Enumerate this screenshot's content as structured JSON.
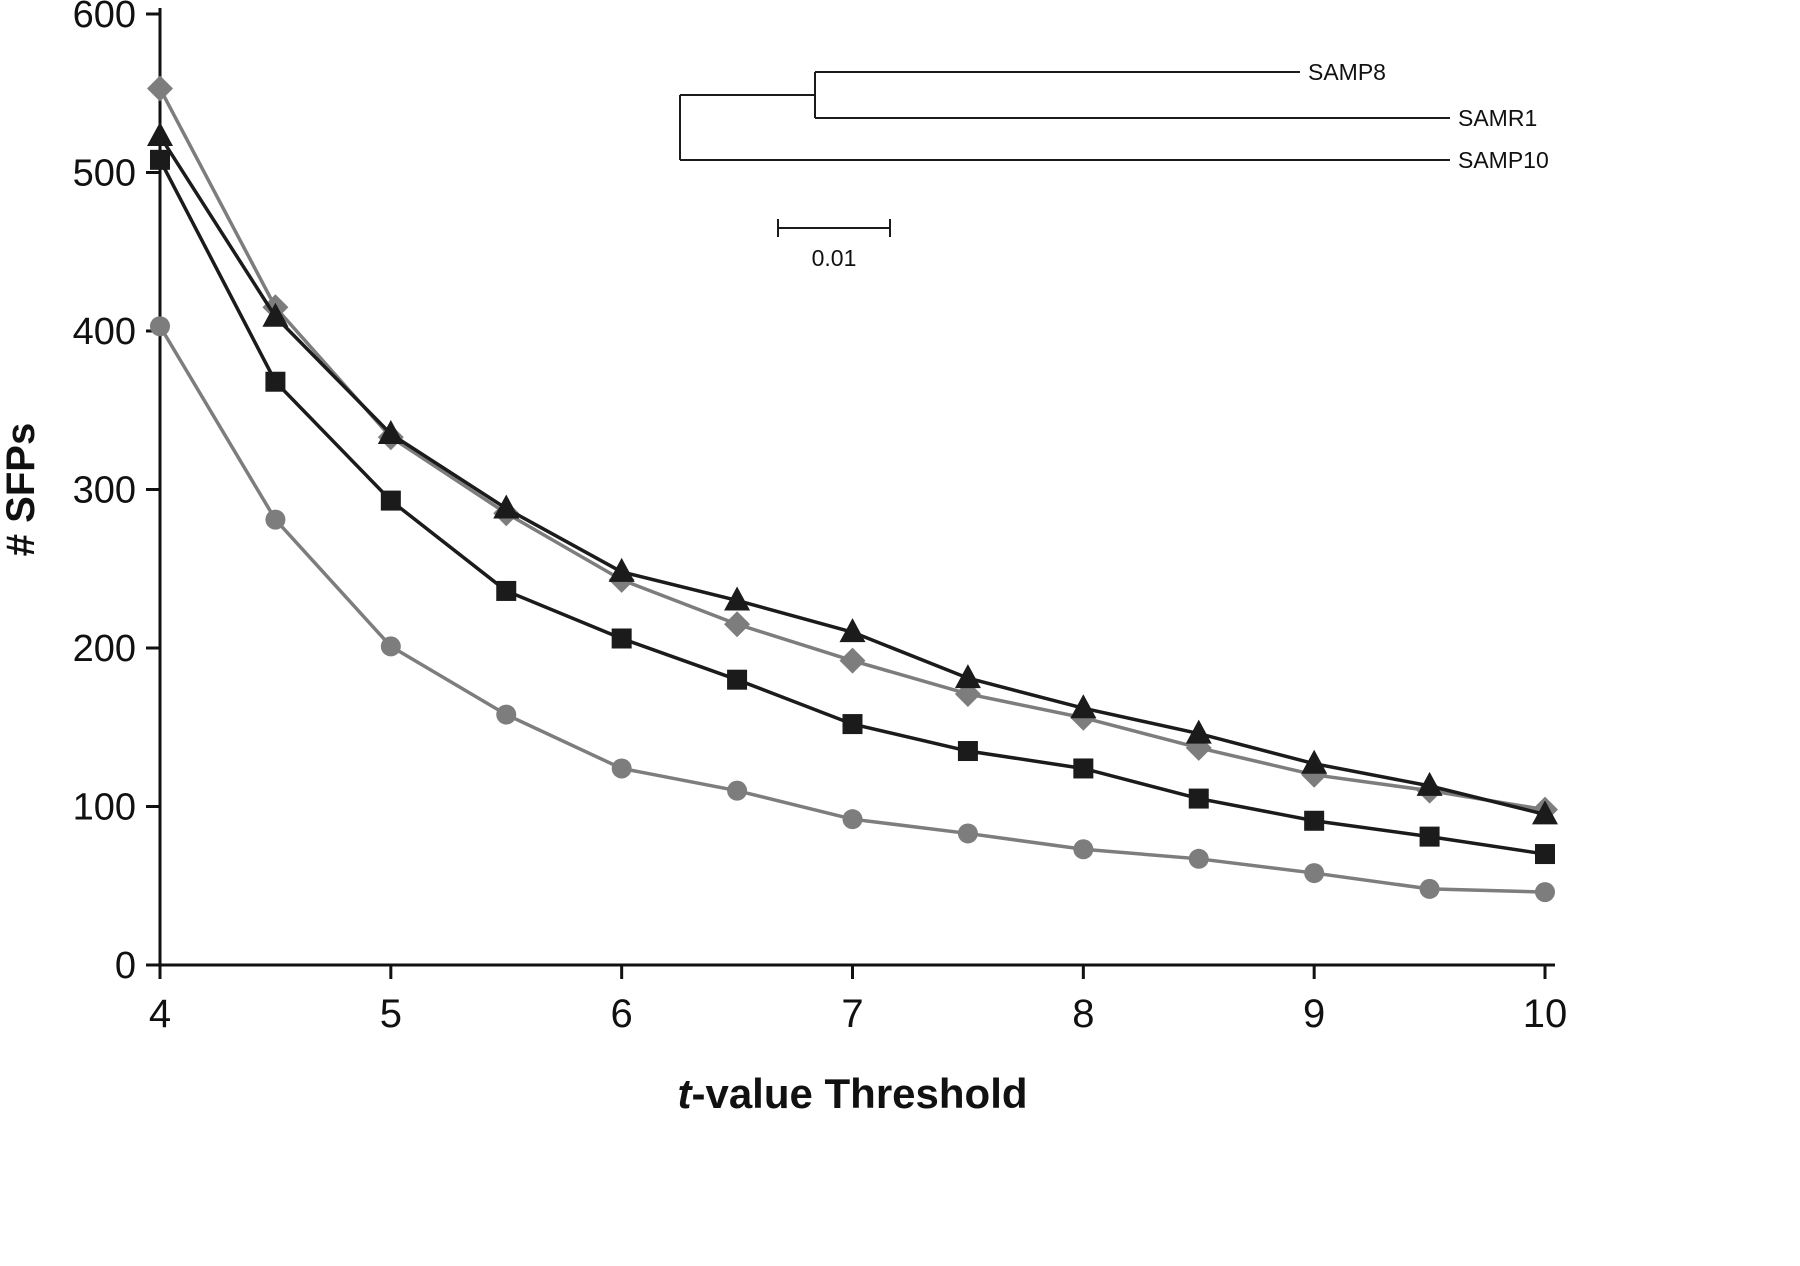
{
  "chart_data": {
    "type": "line",
    "title": "",
    "xlabel_italic": "t",
    "xlabel_rest": "-value Threshold",
    "ylabel": "# SFPs",
    "x": [
      4,
      4.5,
      5,
      5.5,
      6,
      6.5,
      7,
      7.5,
      8,
      8.5,
      9,
      9.5,
      10
    ],
    "xlim": [
      4,
      10
    ],
    "ylim": [
      0,
      600
    ],
    "x_ticks": [
      4,
      5,
      6,
      7,
      8,
      9,
      10
    ],
    "y_ticks": [
      0,
      100,
      200,
      300,
      400,
      500,
      600
    ],
    "grid": false,
    "legend": "none",
    "colors": {
      "gray": "#7d7d7d",
      "black": "#1b1b1b"
    },
    "series": [
      {
        "name": "gray-diamond",
        "marker": "diamond",
        "color": "#7d7d7d",
        "values": [
          553,
          415,
          333,
          285,
          243,
          215,
          192,
          171,
          156,
          137,
          120,
          110,
          98
        ]
      },
      {
        "name": "black-triangle",
        "marker": "triangle",
        "color": "#1b1b1b",
        "values": [
          523,
          409,
          335,
          288,
          248,
          230,
          210,
          181,
          162,
          146,
          127,
          113,
          95
        ]
      },
      {
        "name": "black-square",
        "marker": "square",
        "color": "#1b1b1b",
        "values": [
          508,
          368,
          293,
          236,
          206,
          180,
          152,
          135,
          124,
          105,
          91,
          81,
          70
        ]
      },
      {
        "name": "gray-circle",
        "marker": "circle",
        "color": "#7d7d7d",
        "values": [
          403,
          281,
          201,
          158,
          124,
          110,
          92,
          83,
          73,
          67,
          58,
          48,
          46
        ]
      }
    ],
    "inset_tree": {
      "taxa": [
        "SAMP8",
        "SAMR1",
        "SAMP10"
      ],
      "scale_label": "0.01"
    }
  }
}
